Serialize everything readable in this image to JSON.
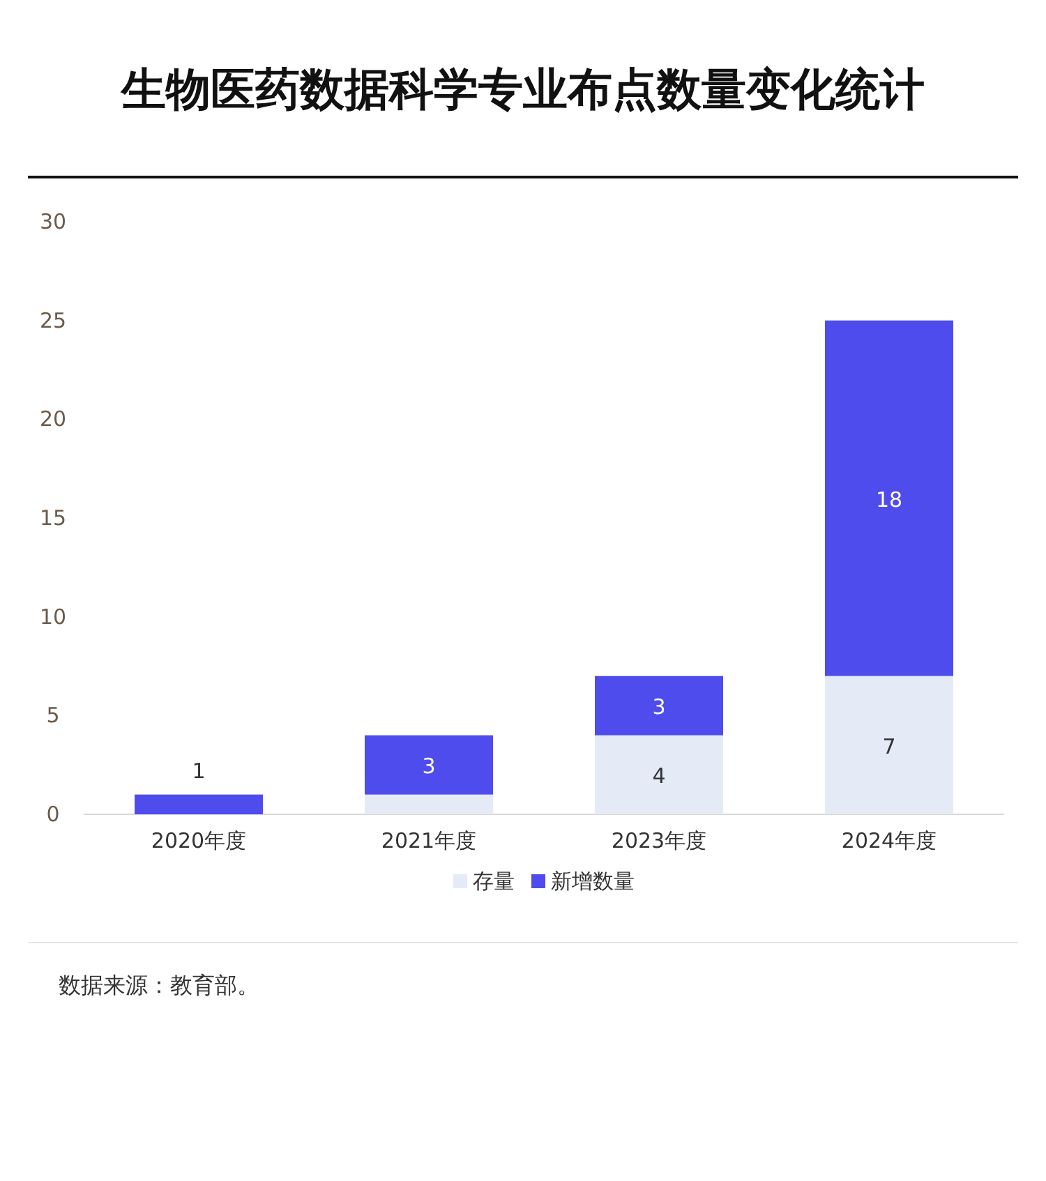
{
  "chart_data": {
    "type": "bar",
    "title": "生物医药数据科学专业布点数量变化统计",
    "categories": [
      "2020年度",
      "2021年度",
      "2023年度",
      "2024年度"
    ],
    "series": [
      {
        "name": "存量",
        "color": "#e4ebf7",
        "values": [
          0,
          1,
          4,
          7
        ],
        "value_labels": [
          null,
          null,
          "4",
          "7"
        ]
      },
      {
        "name": "新增数量",
        "color": "#4f4cee",
        "values": [
          1,
          3,
          3,
          18
        ],
        "value_labels": [
          "1",
          "3",
          "3",
          "18"
        ]
      }
    ],
    "stacked": true,
    "ylim": [
      0,
      30
    ],
    "yticks": [
      0,
      5,
      10,
      15,
      20,
      25,
      30
    ],
    "legend": "bottom",
    "annotations": [
      "数据来源：教育部。"
    ]
  }
}
